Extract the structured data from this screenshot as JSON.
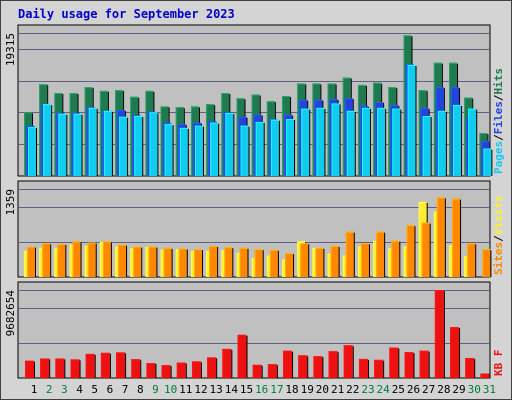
{
  "title": "Daily usage for September 2023",
  "colors": {
    "hits": "#1f7a50",
    "files": "#2244dd",
    "pages": "#11ccee",
    "visits": "#ffee33",
    "sites": "#ff8800",
    "kbytes": "#ee1111",
    "weekday": "#000000",
    "weekend": "#007c3c",
    "panel": "#c0c0c0",
    "grid": "#606080"
  },
  "chart_data": [
    {
      "type": "bar",
      "name": "hits-files-pages",
      "ymax_label": "19315",
      "ylim": [
        0,
        19315
      ],
      "legend": {
        "parts": [
          "Pages",
          "/",
          "Files",
          "/",
          "Hits"
        ]
      },
      "series": [
        {
          "name": "Hits",
          "values": [
            8600,
            12400,
            11200,
            11200,
            12000,
            11500,
            11600,
            10700,
            11500,
            9400,
            9300,
            9400,
            9700,
            11200,
            10500,
            11000,
            10100,
            10800,
            12500,
            12500,
            12500,
            13300,
            12300,
            12600,
            12000,
            19000,
            11600,
            15300,
            15300,
            10600,
            5800
          ]
        },
        {
          "name": "Files",
          "values": [
            6800,
            9700,
            8500,
            8500,
            9300,
            8800,
            8900,
            8200,
            8700,
            7200,
            7000,
            7200,
            7400,
            8600,
            8000,
            8300,
            7700,
            8300,
            10300,
            10300,
            10400,
            10500,
            9500,
            10000,
            9600,
            15100,
            9200,
            12000,
            12000,
            8000,
            4700
          ]
        },
        {
          "name": "Pages",
          "values": [
            6600,
            9700,
            8400,
            8400,
            9200,
            8800,
            8000,
            8100,
            8600,
            7000,
            6500,
            6800,
            7200,
            8500,
            6800,
            7300,
            7600,
            7700,
            9100,
            9200,
            9800,
            8800,
            9200,
            9200,
            9100,
            15000,
            8100,
            8800,
            9600,
            9100,
            3700
          ]
        }
      ]
    },
    {
      "type": "bar",
      "name": "visits-sites",
      "ymax_label": "1359",
      "ylim": [
        0,
        1359
      ],
      "legend": {
        "parts": [
          "Sites",
          "/",
          "Visits"
        ]
      },
      "series": [
        {
          "name": "Visits",
          "values": [
            400,
            450,
            450,
            500,
            480,
            540,
            470,
            440,
            460,
            420,
            430,
            400,
            400,
            410,
            370,
            290,
            330,
            270,
            550,
            450,
            360,
            330,
            470,
            560,
            440,
            470,
            1160,
            1010,
            490,
            320,
            0
          ]
        },
        {
          "name": "Sites",
          "values": [
            470,
            520,
            510,
            550,
            530,
            550,
            500,
            470,
            470,
            450,
            440,
            430,
            480,
            460,
            450,
            430,
            420,
            370,
            520,
            450,
            480,
            700,
            520,
            700,
            560,
            800,
            840,
            1230,
            1210,
            520,
            430
          ]
        }
      ]
    },
    {
      "type": "bar",
      "name": "kbytes",
      "ymax_label": "9682654",
      "ylim": [
        0,
        9682654
      ],
      "legend": {
        "parts": [
          "KB",
          " ",
          "F"
        ]
      },
      "series": [
        {
          "name": "KBytes",
          "values": [
            1900000,
            2150000,
            2150000,
            2050000,
            2650000,
            2770000,
            2820000,
            2070000,
            1650000,
            1420000,
            1700000,
            1830000,
            2270000,
            3200000,
            4750000,
            1450000,
            1520000,
            3000000,
            2500000,
            2400000,
            2950000,
            3600000,
            2100000,
            2000000,
            3350000,
            2850000,
            3000000,
            9682654,
            5600000,
            2200000,
            500000
          ]
        }
      ]
    }
  ],
  "days": [
    "1",
    "2",
    "3",
    "4",
    "5",
    "6",
    "7",
    "8",
    "9",
    "10",
    "11",
    "12",
    "13",
    "14",
    "15",
    "16",
    "17",
    "18",
    "19",
    "20",
    "21",
    "22",
    "23",
    "24",
    "25",
    "26",
    "27",
    "28",
    "29",
    "30",
    "31"
  ],
  "weekend_days": [
    2,
    3,
    9,
    10,
    16,
    17,
    23,
    24,
    30,
    31
  ]
}
